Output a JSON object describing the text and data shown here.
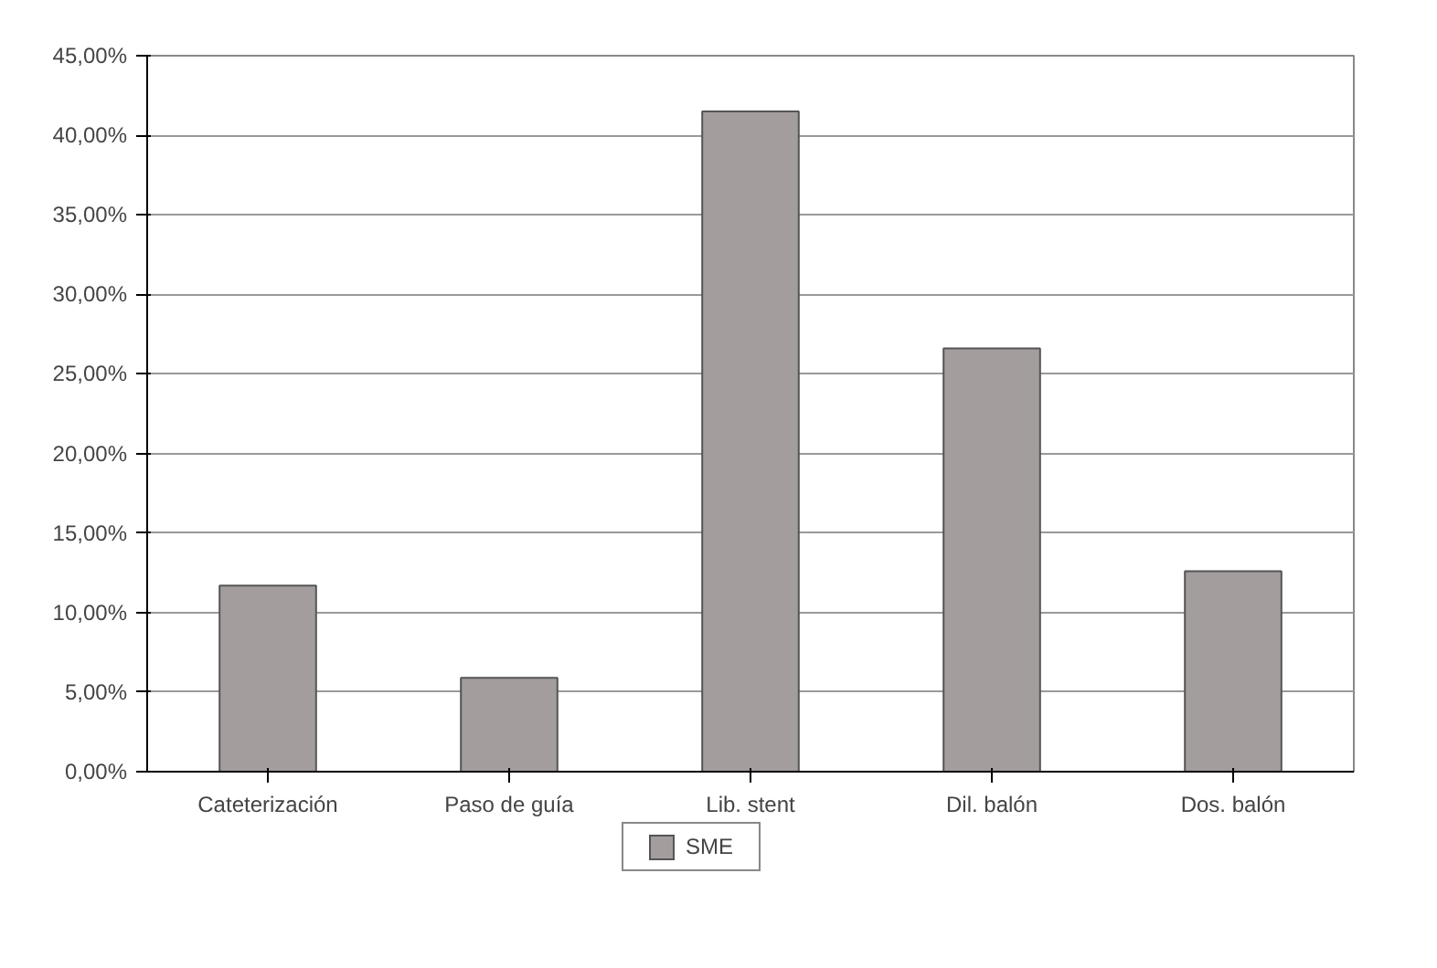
{
  "chart_data": {
    "type": "bar",
    "categories": [
      "Cateterización",
      "Paso de guía",
      "Lib. stent",
      "Dil. balón",
      "Dos. balón"
    ],
    "series": [
      {
        "name": "SME",
        "color": "#a39d9d",
        "values": [
          11.7,
          5.9,
          41.5,
          26.6,
          12.6
        ]
      }
    ],
    "ylim": [
      0,
      45
    ],
    "yticks": [
      {
        "value": 0,
        "label": "0,00%"
      },
      {
        "value": 5,
        "label": "5,00%"
      },
      {
        "value": 10,
        "label": "10,00%"
      },
      {
        "value": 15,
        "label": "15,00%"
      },
      {
        "value": 20,
        "label": "20,00%"
      },
      {
        "value": 25,
        "label": "25,00%"
      },
      {
        "value": 30,
        "label": "30,00%"
      },
      {
        "value": 35,
        "label": "35,00%"
      },
      {
        "value": 40,
        "label": "40,00%"
      },
      {
        "value": 45,
        "label": "45,00%"
      }
    ],
    "grid": "y",
    "legend": "bottom"
  }
}
